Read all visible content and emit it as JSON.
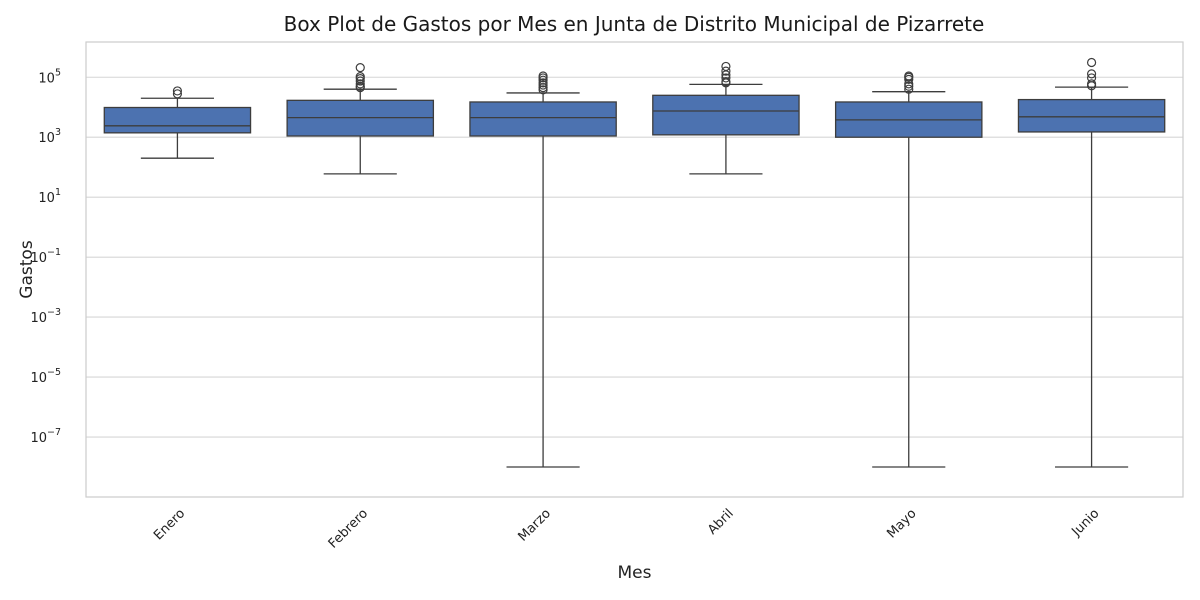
{
  "chart_data": {
    "type": "box",
    "title": "Box Plot de Gastos por Mes en Junta de Distrito Municipal de Pizarrete",
    "xlabel": "Mes",
    "ylabel": "Gastos",
    "yscale": "log",
    "ylim": [
      1e-09,
      1500000.0
    ],
    "yticks": [
      {
        "exp": "5",
        "value": 100000
      },
      {
        "exp": "3",
        "value": 1000
      },
      {
        "exp": "1",
        "value": 10
      },
      {
        "exp": "−1",
        "value": 0.1
      },
      {
        "exp": "−3",
        "value": 0.001
      },
      {
        "exp": "−5",
        "value": 1e-05
      },
      {
        "exp": "−7",
        "value": 1e-07
      }
    ],
    "tick_base": "10",
    "grid": true,
    "box_color": "#4c72b0",
    "categories": [
      "Enero",
      "Febrero",
      "Marzo",
      "Abril",
      "Mayo",
      "Junio"
    ],
    "boxes": [
      {
        "whisker_low": 200,
        "q1": 1400,
        "median": 2400,
        "q3": 9800,
        "whisker_high": 20000,
        "outliers": [
          28000,
          35000
        ]
      },
      {
        "whisker_low": 60,
        "q1": 1100,
        "median": 4500,
        "q3": 17000,
        "whisker_high": 40000,
        "outliers": [
          45000,
          50000,
          60000,
          75000,
          90000,
          105000,
          210000
        ]
      },
      {
        "whisker_low": 1e-08,
        "q1": 1100,
        "median": 4500,
        "q3": 15000,
        "whisker_high": 30000,
        "outliers": [
          38000,
          45000,
          55000,
          65000,
          80000,
          95000,
          110000
        ]
      },
      {
        "whisker_low": 60,
        "q1": 1200,
        "median": 7500,
        "q3": 25000,
        "whisker_high": 58000,
        "outliers": [
          65000,
          72000,
          95000,
          120000,
          160000,
          230000
        ]
      },
      {
        "whisker_low": 1e-08,
        "q1": 1000,
        "median": 3800,
        "q3": 15000,
        "whisker_high": 33000,
        "outliers": [
          40000,
          50000,
          60000,
          85000,
          100000,
          110000
        ]
      },
      {
        "whisker_low": 1e-08,
        "q1": 1500,
        "median": 4800,
        "q3": 18000,
        "whisker_high": 47000,
        "outliers": [
          52000,
          60000,
          95000,
          130000,
          310000
        ]
      }
    ]
  }
}
